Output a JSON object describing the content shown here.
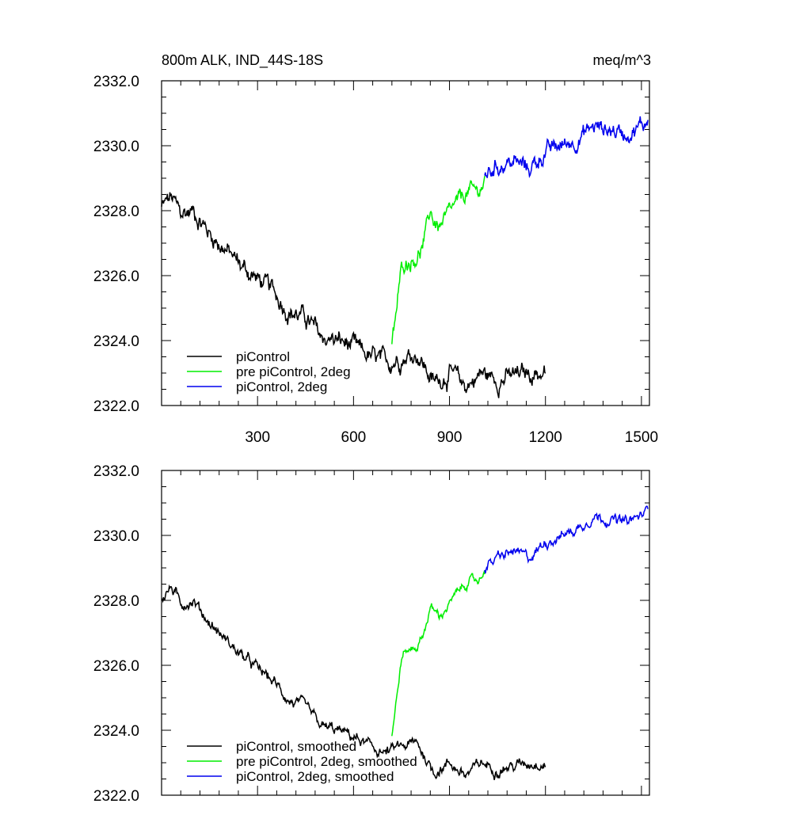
{
  "chart_data": [
    {
      "type": "line",
      "title": "800m ALK, IND_44S-18S",
      "units": "meq/m^3",
      "xlim": [
        0,
        1525
      ],
      "ylim": [
        2322.0,
        2332.0
      ],
      "yticks": [
        "2322.0",
        "2324.0",
        "2326.0",
        "2328.0",
        "2330.0",
        "2332.0"
      ],
      "xticks": [
        "300",
        "600",
        "900",
        "1200",
        "1500"
      ],
      "legend_position": "bottom-left",
      "series": [
        {
          "name": "piControl",
          "color": "#000000",
          "x": [
            0,
            30,
            60,
            100,
            150,
            200,
            250,
            300,
            350,
            400,
            450,
            500,
            550,
            600,
            650,
            700,
            750,
            800,
            850,
            900,
            950,
            1000,
            1050,
            1100,
            1150,
            1200
          ],
          "y": [
            2328.1,
            2328.4,
            2327.9,
            2328.0,
            2327.3,
            2326.8,
            2326.3,
            2325.9,
            2325.5,
            2324.9,
            2324.7,
            2324.1,
            2324.0,
            2323.8,
            2323.5,
            2323.3,
            2323.5,
            2323.6,
            2322.7,
            2323.0,
            2322.6,
            2323.0,
            2322.8,
            2322.9,
            2323.0,
            2323.0
          ],
          "noise": 0.22
        },
        {
          "name": "pre piControl, 2deg",
          "color": "#00ee00",
          "x": [
            720,
            735,
            750,
            760,
            780,
            800,
            820,
            840,
            850,
            870,
            900,
            930,
            960,
            990,
            1010
          ],
          "y": [
            2323.8,
            2325.0,
            2326.2,
            2326.4,
            2326.5,
            2326.6,
            2327.0,
            2328.0,
            2327.7,
            2327.5,
            2327.9,
            2328.3,
            2328.6,
            2328.6,
            2328.9
          ],
          "noise": 0.18
        },
        {
          "name": "piControl, 2deg",
          "color": "#0000ee",
          "x": [
            1010,
            1050,
            1100,
            1150,
            1200,
            1250,
            1300,
            1350,
            1400,
            1450,
            1500,
            1520
          ],
          "y": [
            2329.1,
            2329.4,
            2329.5,
            2329.3,
            2329.8,
            2330.0,
            2330.2,
            2330.6,
            2330.5,
            2330.4,
            2330.6,
            2330.8
          ],
          "noise": 0.2
        }
      ]
    },
    {
      "type": "line",
      "xlim": [
        0,
        1525
      ],
      "ylim": [
        2322.0,
        2332.0
      ],
      "yticks": [
        "2322.0",
        "2324.0",
        "2326.0",
        "2328.0",
        "2330.0",
        "2332.0"
      ],
      "legend_position": "bottom-left",
      "series": [
        {
          "name": "piControl, smoothed",
          "color": "#000000",
          "x": [
            0,
            30,
            60,
            100,
            150,
            200,
            250,
            300,
            350,
            400,
            450,
            500,
            550,
            600,
            650,
            700,
            750,
            800,
            850,
            900,
            950,
            1000,
            1050,
            1100,
            1150,
            1200
          ],
          "y": [
            2328.1,
            2328.4,
            2327.9,
            2328.0,
            2327.3,
            2326.8,
            2326.3,
            2325.9,
            2325.5,
            2324.9,
            2324.7,
            2324.1,
            2324.0,
            2323.8,
            2323.5,
            2323.3,
            2323.5,
            2323.6,
            2322.7,
            2323.0,
            2322.6,
            2323.0,
            2322.8,
            2322.9,
            2323.0,
            2323.0
          ],
          "noise": 0.13
        },
        {
          "name": "pre piControl, 2deg, smoothed",
          "color": "#00ee00",
          "x": [
            720,
            735,
            750,
            760,
            780,
            800,
            820,
            840,
            850,
            870,
            900,
            930,
            960,
            990,
            1010
          ],
          "y": [
            2323.8,
            2325.0,
            2326.2,
            2326.4,
            2326.5,
            2326.6,
            2327.0,
            2327.8,
            2327.7,
            2327.5,
            2327.9,
            2328.3,
            2328.6,
            2328.6,
            2328.9
          ],
          "noise": 0.1
        },
        {
          "name": "piControl, 2deg, smoothed",
          "color": "#0000ee",
          "x": [
            1010,
            1050,
            1100,
            1150,
            1200,
            1250,
            1300,
            1350,
            1400,
            1450,
            1500,
            1520
          ],
          "y": [
            2329.0,
            2329.3,
            2329.5,
            2329.3,
            2329.8,
            2330.0,
            2330.2,
            2330.6,
            2330.5,
            2330.4,
            2330.6,
            2330.8
          ],
          "noise": 0.12
        }
      ]
    }
  ]
}
